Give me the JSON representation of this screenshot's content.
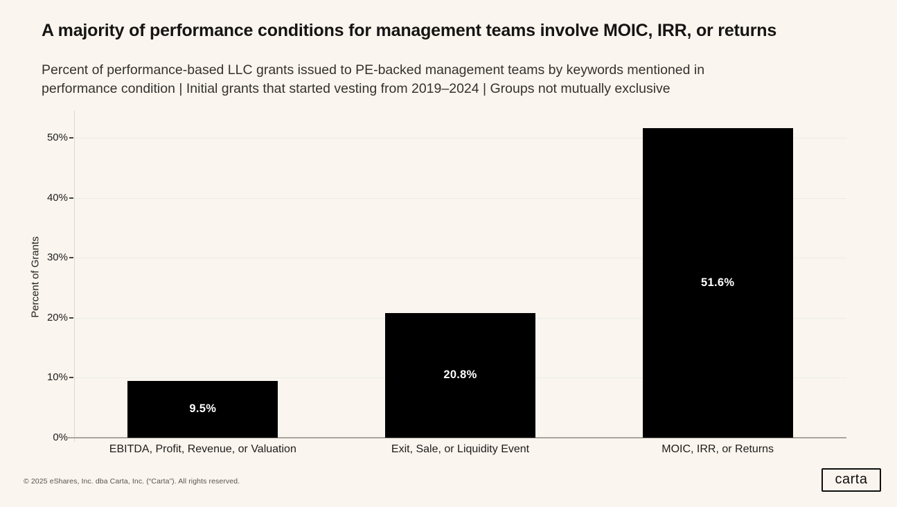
{
  "page": {
    "background": "#FAF5EF",
    "title": "A majority of performance conditions for management teams involve MOIC, IRR, or returns",
    "subtitle_line1": "Percent of performance-based LLC grants issued to PE-backed management teams by keywords mentioned in",
    "subtitle_line2": "performance condition | Initial grants that started vesting from 2019–2024 | Groups not mutually exclusive"
  },
  "chart_data": {
    "type": "bar",
    "title": "A majority of performance conditions for management teams involve MOIC, IRR, or returns",
    "subtitle": "Percent of performance-based LLC grants issued to PE-backed management teams by keywords mentioned in performance condition | Initial grants that started vesting from 2019–2024 | Groups not mutually exclusive",
    "categories": [
      "EBITDA, Profit, Revenue, or Valuation",
      "Exit, Sale, or Liquidity Event",
      "MOIC, IRR, or Returns"
    ],
    "values": [
      9.5,
      20.8,
      51.6
    ],
    "value_labels": [
      "9.5%",
      "20.8%",
      "51.6%"
    ],
    "xlabel": "",
    "ylabel": "Percent of Grants",
    "ylim": [
      0,
      54.5
    ],
    "yticks": [
      0,
      10,
      20,
      30,
      40,
      50
    ],
    "ytick_labels": [
      "0%",
      "10%",
      "20%",
      "30%",
      "40%",
      "50%"
    ],
    "grid": true,
    "legend_position": "none",
    "bar_color": "#000000",
    "bar_label_color": "#FFFFFF"
  },
  "footer": {
    "copyright": "© 2025 eShares, Inc. dba Carta, Inc. (“Carta”). All rights reserved.",
    "logo_text": "carta"
  }
}
